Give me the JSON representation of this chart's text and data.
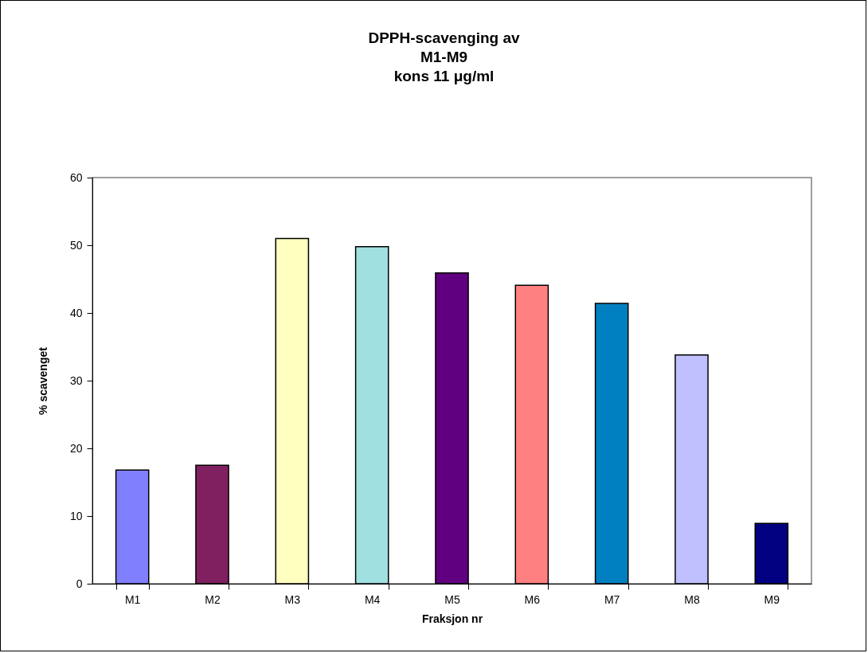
{
  "chart_data": {
    "type": "bar",
    "title": "DPPH-scavenging av\nM1-M9\nkons 11 μg/ml",
    "xlabel": "Fraksjon nr",
    "ylabel": "% scavenget",
    "categories": [
      "M1",
      "M2",
      "M3",
      "M4",
      "M5",
      "M6",
      "M7",
      "M8",
      "M9"
    ],
    "values": [
      16.8,
      17.5,
      51.0,
      49.8,
      45.9,
      44.1,
      41.4,
      33.8,
      8.9
    ],
    "colors": [
      "#8080ff",
      "#802060",
      "#ffffc0",
      "#a0e0e0",
      "#600080",
      "#ff8080",
      "#0080c0",
      "#c0c0ff",
      "#000080"
    ],
    "ylim": [
      0,
      60
    ],
    "yticks": [
      0,
      10,
      20,
      30,
      40,
      50,
      60
    ],
    "grid": false
  }
}
